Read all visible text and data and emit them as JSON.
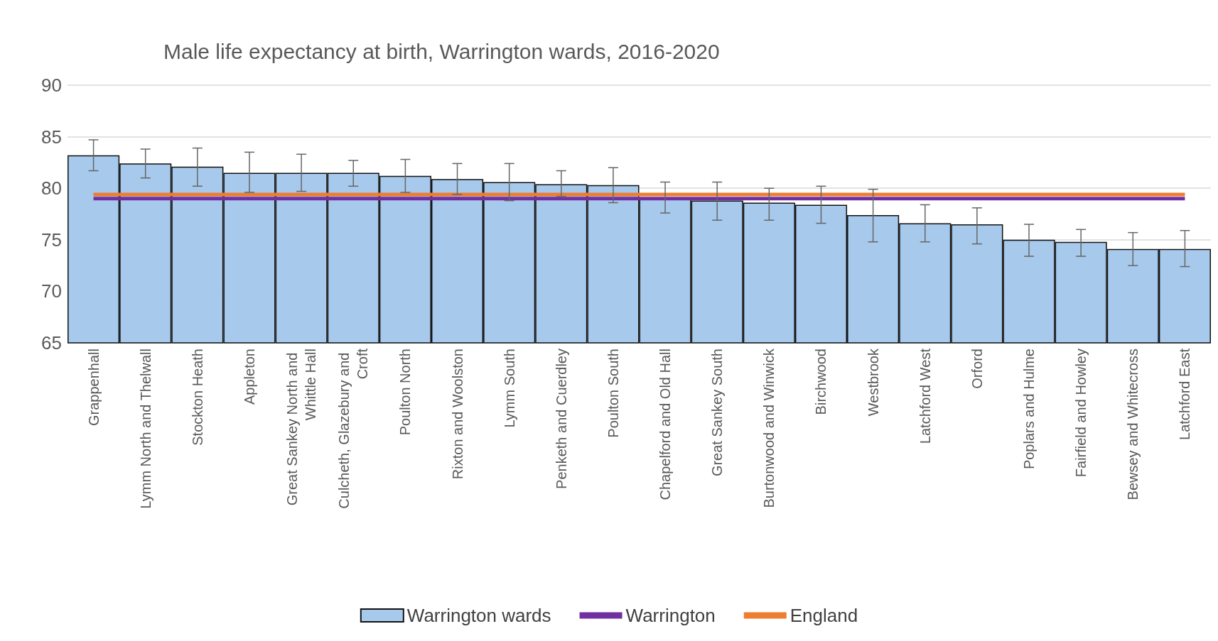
{
  "chart_data": {
    "type": "bar",
    "title": "Male life expectancy at birth, Warrington wards, 2016-2020",
    "categories": [
      "Grappenhall",
      "Lymm North and Thelwall",
      "Stockton Heath",
      "Appleton",
      "Great Sankey North and Whittle Hall",
      "Culcheth, Glazebury and Croft",
      "Poulton North",
      "Rixton and Woolston",
      "Lymm South",
      "Penketh and Cuerdley",
      "Poulton South",
      "Chapelford and Old Hall",
      "Great Sankey South",
      "Burtonwood and Winwick",
      "Birchwood",
      "Westbrook",
      "Latchford West",
      "Orford",
      "Poplars and Hulme",
      "Fairfield and Howley",
      "Bewsey and Whitecross",
      "Latchford East"
    ],
    "series": [
      {
        "name": "Warrington wards",
        "color": "#a7c9eb",
        "values": [
          83.2,
          82.4,
          82.1,
          81.5,
          81.5,
          81.5,
          81.2,
          80.9,
          80.6,
          80.4,
          80.3,
          79.0,
          78.8,
          78.6,
          78.4,
          77.4,
          76.6,
          76.5,
          75.0,
          74.8,
          74.1,
          74.1
        ],
        "errors": [
          [
            81.7,
            84.7
          ],
          [
            81.0,
            83.8
          ],
          [
            80.2,
            83.9
          ],
          [
            79.6,
            83.5
          ],
          [
            79.7,
            83.3
          ],
          [
            80.2,
            82.7
          ],
          [
            79.6,
            82.8
          ],
          [
            79.4,
            82.4
          ],
          [
            78.8,
            82.4
          ],
          [
            79.2,
            81.7
          ],
          [
            78.6,
            82.0
          ],
          [
            77.6,
            80.6
          ],
          [
            76.9,
            80.6
          ],
          [
            76.9,
            80.0
          ],
          [
            76.6,
            80.2
          ],
          [
            74.8,
            79.9
          ],
          [
            74.8,
            78.4
          ],
          [
            74.6,
            78.1
          ],
          [
            73.4,
            76.5
          ],
          [
            73.4,
            76.0
          ],
          [
            72.5,
            75.7
          ],
          [
            72.4,
            75.9
          ]
        ]
      },
      {
        "name": "Warrington",
        "type": "line",
        "color": "#7030a0",
        "values": [
          79.0,
          79.0,
          79.0,
          79.0,
          79.0,
          79.0,
          79.0,
          79.0,
          79.0,
          79.0,
          79.0,
          79.0,
          79.0,
          79.0,
          79.0,
          79.0,
          79.0,
          79.0,
          79.0,
          79.0,
          79.0,
          79.0
        ]
      },
      {
        "name": "England",
        "type": "line",
        "color": "#ed7d31",
        "values": [
          79.4,
          79.4,
          79.4,
          79.4,
          79.4,
          79.4,
          79.4,
          79.4,
          79.4,
          79.4,
          79.4,
          79.4,
          79.4,
          79.4,
          79.4,
          79.4,
          79.4,
          79.4,
          79.4,
          79.4,
          79.4,
          79.4
        ]
      }
    ],
    "ylim": [
      65,
      90
    ],
    "yticks": [
      65,
      70,
      75,
      80,
      85,
      90
    ],
    "grid": "y",
    "legend": "bottom",
    "marker": "none",
    "line_style": "solid"
  }
}
